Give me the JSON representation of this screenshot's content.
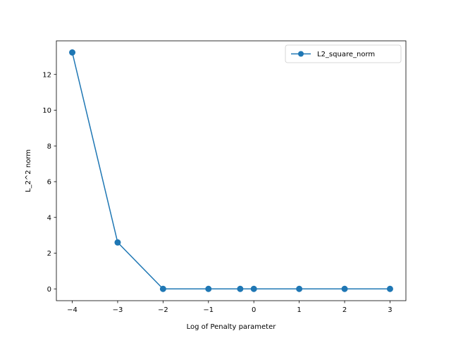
{
  "chart_data": {
    "type": "line",
    "title": "",
    "xlabel": "Log of Penalty parameter",
    "ylabel": "L_2^2 norm",
    "xlim": [
      -4.35,
      3.35
    ],
    "ylim": [
      -0.66,
      13.88
    ],
    "xticks": [
      -4,
      -3,
      -2,
      -1,
      0,
      1,
      2,
      3
    ],
    "xtick_labels": [
      "−4",
      "−3",
      "−2",
      "−1",
      "0",
      "1",
      "2",
      "3"
    ],
    "yticks": [
      0,
      2,
      4,
      6,
      8,
      10,
      12
    ],
    "ytick_labels": [
      "0",
      "2",
      "4",
      "6",
      "8",
      "10",
      "12"
    ],
    "grid": false,
    "legend_position": "top-right",
    "series": [
      {
        "name": "L2_square_norm",
        "color": "#1f77b4",
        "marker": "circle",
        "x": [
          -4,
          -3,
          -2,
          -1,
          -0.3,
          0,
          1,
          2,
          3
        ],
        "y": [
          13.23,
          2.6,
          0.0,
          0.0,
          0.0,
          0.0,
          0.0,
          0.0,
          0.0
        ]
      }
    ]
  }
}
